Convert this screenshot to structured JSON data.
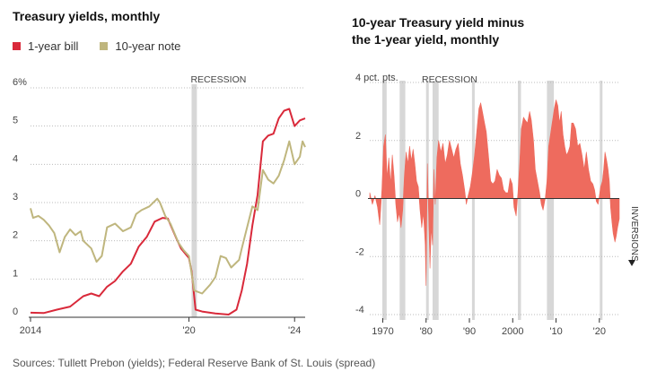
{
  "colors": {
    "bill": "#d9293a",
    "note": "#bfb67e",
    "spread": "#ee6b5e",
    "recession": "#d7d7d7",
    "grid": "#bbbbbb",
    "axis": "#333333"
  },
  "left_chart": {
    "title": "Treasury yields, monthly",
    "legend": [
      {
        "label": "1-year bill",
        "color": "#d9293a"
      },
      {
        "label": "10-year note",
        "color": "#bfb67e"
      }
    ],
    "recession_label": "RECESSION"
  },
  "right_chart": {
    "title_line1": "10-year Treasury yield minus",
    "title_line2": "the 1-year yield, monthly",
    "recession_label": "RECESSION",
    "inversions_label": "INVERSIONS"
  },
  "source": "Sources: Tullett Prebon (yields); Federal Reserve Bank of St. Louis (spread)",
  "chart_data": [
    {
      "type": "line",
      "title": "Treasury yields, monthly",
      "xlabel": "",
      "ylabel": "",
      "xlim": [
        2014.0,
        2024.4
      ],
      "ylim": [
        0,
        6
      ],
      "y_ticks": [
        {
          "value": 0,
          "label": "0"
        },
        {
          "value": 1,
          "label": "1"
        },
        {
          "value": 2,
          "label": "2"
        },
        {
          "value": 3,
          "label": "3"
        },
        {
          "value": 4,
          "label": "4"
        },
        {
          "value": 5,
          "label": "5"
        },
        {
          "value": 6,
          "label": "6%"
        }
      ],
      "x_ticks": [
        {
          "value": 2014.0,
          "label": "2014"
        },
        {
          "value": 2020.0,
          "label": "'20"
        },
        {
          "value": 2024.0,
          "label": "'24"
        }
      ],
      "recessions": [
        [
          2020.1,
          2020.3
        ]
      ],
      "series": [
        {
          "name": "1-year bill",
          "points": [
            [
              2014.0,
              0.12
            ],
            [
              2014.5,
              0.11
            ],
            [
              2015.0,
              0.2
            ],
            [
              2015.5,
              0.28
            ],
            [
              2016.0,
              0.55
            ],
            [
              2016.3,
              0.62
            ],
            [
              2016.6,
              0.55
            ],
            [
              2016.9,
              0.8
            ],
            [
              2017.2,
              0.95
            ],
            [
              2017.5,
              1.2
            ],
            [
              2017.8,
              1.4
            ],
            [
              2018.1,
              1.85
            ],
            [
              2018.4,
              2.1
            ],
            [
              2018.7,
              2.5
            ],
            [
              2019.0,
              2.6
            ],
            [
              2019.2,
              2.58
            ],
            [
              2019.5,
              2.1
            ],
            [
              2019.7,
              1.8
            ],
            [
              2020.0,
              1.55
            ],
            [
              2020.1,
              1.2
            ],
            [
              2020.25,
              0.2
            ],
            [
              2020.5,
              0.15
            ],
            [
              2021.0,
              0.1
            ],
            [
              2021.5,
              0.07
            ],
            [
              2021.8,
              0.2
            ],
            [
              2022.0,
              0.7
            ],
            [
              2022.2,
              1.4
            ],
            [
              2022.4,
              2.4
            ],
            [
              2022.6,
              3.2
            ],
            [
              2022.8,
              4.6
            ],
            [
              2023.0,
              4.75
            ],
            [
              2023.2,
              4.8
            ],
            [
              2023.4,
              5.2
            ],
            [
              2023.6,
              5.4
            ],
            [
              2023.8,
              5.45
            ],
            [
              2024.0,
              5.0
            ],
            [
              2024.2,
              5.15
            ],
            [
              2024.4,
              5.2
            ]
          ]
        },
        {
          "name": "10-year note",
          "points": [
            [
              2014.0,
              2.85
            ],
            [
              2014.1,
              2.6
            ],
            [
              2014.3,
              2.65
            ],
            [
              2014.5,
              2.55
            ],
            [
              2014.7,
              2.4
            ],
            [
              2014.9,
              2.2
            ],
            [
              2015.1,
              1.7
            ],
            [
              2015.3,
              2.1
            ],
            [
              2015.5,
              2.3
            ],
            [
              2015.7,
              2.15
            ],
            [
              2015.9,
              2.25
            ],
            [
              2016.0,
              2.0
            ],
            [
              2016.3,
              1.8
            ],
            [
              2016.5,
              1.45
            ],
            [
              2016.7,
              1.6
            ],
            [
              2016.9,
              2.35
            ],
            [
              2017.2,
              2.45
            ],
            [
              2017.5,
              2.25
            ],
            [
              2017.8,
              2.35
            ],
            [
              2018.0,
              2.7
            ],
            [
              2018.2,
              2.8
            ],
            [
              2018.5,
              2.9
            ],
            [
              2018.8,
              3.1
            ],
            [
              2018.9,
              3.0
            ],
            [
              2019.1,
              2.65
            ],
            [
              2019.3,
              2.45
            ],
            [
              2019.6,
              1.95
            ],
            [
              2019.8,
              1.75
            ],
            [
              2020.0,
              1.6
            ],
            [
              2020.2,
              0.7
            ],
            [
              2020.5,
              0.62
            ],
            [
              2020.8,
              0.85
            ],
            [
              2021.0,
              1.05
            ],
            [
              2021.2,
              1.6
            ],
            [
              2021.4,
              1.55
            ],
            [
              2021.6,
              1.3
            ],
            [
              2021.9,
              1.5
            ],
            [
              2022.0,
              1.8
            ],
            [
              2022.2,
              2.35
            ],
            [
              2022.4,
              2.9
            ],
            [
              2022.6,
              2.8
            ],
            [
              2022.8,
              3.85
            ],
            [
              2023.0,
              3.6
            ],
            [
              2023.2,
              3.5
            ],
            [
              2023.4,
              3.7
            ],
            [
              2023.6,
              4.1
            ],
            [
              2023.8,
              4.6
            ],
            [
              2024.0,
              4.0
            ],
            [
              2024.2,
              4.2
            ],
            [
              2024.3,
              4.6
            ],
            [
              2024.4,
              4.45
            ]
          ]
        }
      ]
    },
    {
      "type": "area",
      "title": "10-year Treasury yield minus the 1-year yield, monthly",
      "xlabel": "",
      "ylabel": "pct. pts.",
      "xlim": [
        1967,
        2024.6
      ],
      "ylim": [
        -4,
        4
      ],
      "y_ticks": [
        {
          "value": 4,
          "label": "4 pct. pts."
        },
        {
          "value": 2,
          "label": "2"
        },
        {
          "value": 0,
          "label": "0"
        },
        {
          "value": -2,
          "label": "-2"
        },
        {
          "value": -4,
          "label": "-4"
        }
      ],
      "x_ticks": [
        {
          "value": 1970,
          "label": "1970"
        },
        {
          "value": 1980,
          "label": "'80"
        },
        {
          "value": 1990,
          "label": "'90"
        },
        {
          "value": 2000,
          "label": "2000"
        },
        {
          "value": 2010,
          "label": "'10"
        },
        {
          "value": 2020,
          "label": "'20"
        }
      ],
      "recessions": [
        [
          1969.9,
          1970.9
        ],
        [
          1973.9,
          1975.2
        ],
        [
          1980.0,
          1980.5
        ],
        [
          1981.5,
          1982.9
        ],
        [
          1990.6,
          1991.2
        ],
        [
          2001.2,
          2001.9
        ],
        [
          2007.9,
          2009.5
        ],
        [
          2020.1,
          2020.3
        ]
      ],
      "annotations": [
        "RECESSION",
        "INVERSIONS"
      ],
      "series": [
        {
          "name": "10-year minus 1-year",
          "points": [
            [
              1967,
              0.2
            ],
            [
              1967.6,
              -0.2
            ],
            [
              1968.2,
              0.1
            ],
            [
              1968.8,
              -0.3
            ],
            [
              1969.3,
              -0.9
            ],
            [
              1969.8,
              0.3
            ],
            [
              1970.2,
              1.8
            ],
            [
              1970.6,
              2.2
            ],
            [
              1971.0,
              0.7
            ],
            [
              1971.4,
              1.4
            ],
            [
              1971.8,
              0.5
            ],
            [
              1972.2,
              1.5
            ],
            [
              1972.6,
              0.8
            ],
            [
              1973.0,
              -0.2
            ],
            [
              1973.4,
              -0.8
            ],
            [
              1973.8,
              -0.5
            ],
            [
              1974.2,
              -1.0
            ],
            [
              1974.6,
              -0.4
            ],
            [
              1975.0,
              0.8
            ],
            [
              1975.4,
              1.6
            ],
            [
              1975.8,
              1.2
            ],
            [
              1976.2,
              1.8
            ],
            [
              1976.6,
              1.3
            ],
            [
              1977.0,
              1.7
            ],
            [
              1977.4,
              1.2
            ],
            [
              1977.8,
              0.6
            ],
            [
              1978.2,
              0.4
            ],
            [
              1978.6,
              -0.4
            ],
            [
              1979.0,
              -1.0
            ],
            [
              1979.4,
              -0.5
            ],
            [
              1979.8,
              -1.6
            ],
            [
              1980.0,
              -3.0
            ],
            [
              1980.3,
              1.2
            ],
            [
              1980.6,
              -0.6
            ],
            [
              1980.9,
              -2.4
            ],
            [
              1981.2,
              -1.0
            ],
            [
              1981.5,
              -1.6
            ],
            [
              1981.8,
              1.0
            ],
            [
              1982.1,
              -0.2
            ],
            [
              1982.5,
              1.4
            ],
            [
              1982.9,
              2.0
            ],
            [
              1983.4,
              1.6
            ],
            [
              1983.9,
              1.9
            ],
            [
              1984.4,
              1.2
            ],
            [
              1984.9,
              1.5
            ],
            [
              1985.4,
              2.0
            ],
            [
              1985.9,
              1.7
            ],
            [
              1986.4,
              1.4
            ],
            [
              1986.9,
              1.7
            ],
            [
              1987.4,
              1.9
            ],
            [
              1987.9,
              1.2
            ],
            [
              1988.4,
              0.8
            ],
            [
              1988.9,
              0.3
            ],
            [
              1989.3,
              -0.2
            ],
            [
              1989.7,
              0.1
            ],
            [
              1990.2,
              0.4
            ],
            [
              1990.7,
              0.9
            ],
            [
              1991.2,
              1.5
            ],
            [
              1991.7,
              2.3
            ],
            [
              1992.2,
              3.1
            ],
            [
              1992.6,
              3.3
            ],
            [
              1993.0,
              3.0
            ],
            [
              1993.5,
              2.6
            ],
            [
              1993.9,
              2.3
            ],
            [
              1994.4,
              1.5
            ],
            [
              1994.9,
              0.6
            ],
            [
              1995.4,
              0.5
            ],
            [
              1995.9,
              0.6
            ],
            [
              1996.4,
              1.0
            ],
            [
              1996.9,
              0.8
            ],
            [
              1997.4,
              0.7
            ],
            [
              1997.9,
              0.3
            ],
            [
              1998.4,
              0.2
            ],
            [
              1998.9,
              0.2
            ],
            [
              1999.4,
              0.7
            ],
            [
              1999.9,
              0.5
            ],
            [
              2000.3,
              -0.3
            ],
            [
              2000.8,
              -0.6
            ],
            [
              2001.2,
              0.2
            ],
            [
              2001.6,
              1.2
            ],
            [
              2002.0,
              2.4
            ],
            [
              2002.5,
              2.8
            ],
            [
              2002.9,
              2.7
            ],
            [
              2003.4,
              2.6
            ],
            [
              2003.9,
              3.0
            ],
            [
              2004.3,
              2.7
            ],
            [
              2004.8,
              2.0
            ],
            [
              2005.2,
              1.0
            ],
            [
              2005.7,
              0.6
            ],
            [
              2006.2,
              0.2
            ],
            [
              2006.6,
              -0.2
            ],
            [
              2007.0,
              -0.4
            ],
            [
              2007.5,
              0.0
            ],
            [
              2007.9,
              0.6
            ],
            [
              2008.3,
              1.8
            ],
            [
              2008.7,
              2.2
            ],
            [
              2009.0,
              2.5
            ],
            [
              2009.3,
              2.8
            ],
            [
              2009.6,
              3.1
            ],
            [
              2010.0,
              3.4
            ],
            [
              2010.4,
              3.2
            ],
            [
              2010.8,
              2.6
            ],
            [
              2011.2,
              3.0
            ],
            [
              2011.6,
              2.2
            ],
            [
              2012.0,
              1.8
            ],
            [
              2012.4,
              1.5
            ],
            [
              2012.8,
              1.6
            ],
            [
              2013.2,
              1.8
            ],
            [
              2013.6,
              2.6
            ],
            [
              2014.0,
              2.6
            ],
            [
              2014.5,
              2.4
            ],
            [
              2015.0,
              1.8
            ],
            [
              2015.5,
              1.9
            ],
            [
              2016.0,
              1.5
            ],
            [
              2016.5,
              1.0
            ],
            [
              2017.0,
              1.6
            ],
            [
              2017.5,
              1.0
            ],
            [
              2018.0,
              0.6
            ],
            [
              2018.5,
              0.5
            ],
            [
              2018.9,
              0.3
            ],
            [
              2019.3,
              -0.1
            ],
            [
              2019.7,
              -0.2
            ],
            [
              2020.0,
              0.1
            ],
            [
              2020.3,
              0.4
            ],
            [
              2020.7,
              0.6
            ],
            [
              2021.0,
              1.0
            ],
            [
              2021.3,
              1.6
            ],
            [
              2021.7,
              1.3
            ],
            [
              2022.0,
              1.0
            ],
            [
              2022.3,
              0.6
            ],
            [
              2022.6,
              -0.3
            ],
            [
              2022.9,
              -0.8
            ],
            [
              2023.2,
              -1.2
            ],
            [
              2023.6,
              -1.5
            ],
            [
              2023.9,
              -1.3
            ],
            [
              2024.2,
              -1.0
            ],
            [
              2024.6,
              -0.7
            ]
          ]
        }
      ]
    }
  ]
}
